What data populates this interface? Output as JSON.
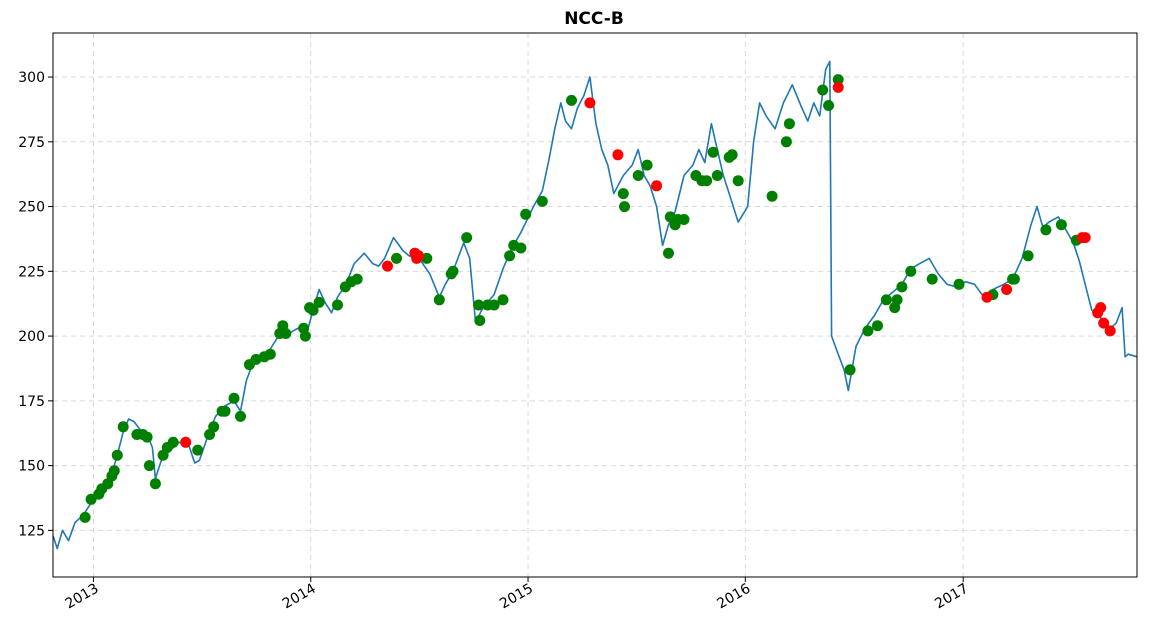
{
  "chart_data": {
    "type": "line",
    "title": "NCC-B",
    "xlabel": "",
    "ylabel": "",
    "xlim": [
      "2012-10-25",
      "2017-10-20"
    ],
    "ylim": [
      107,
      317
    ],
    "grid": true,
    "colors": {
      "line": "#1f77b4",
      "buy": "#008000",
      "sell": "#ff0000",
      "grid": "#d9d9d9"
    },
    "x_ticks": [
      {
        "date": "2013-01-01",
        "label": "2013"
      },
      {
        "date": "2014-01-01",
        "label": "2014"
      },
      {
        "date": "2015-01-01",
        "label": "2015"
      },
      {
        "date": "2016-01-01",
        "label": "2016"
      },
      {
        "date": "2017-01-01",
        "label": "2017"
      }
    ],
    "y_ticks": [
      {
        "value": 125,
        "label": "125"
      },
      {
        "value": 150,
        "label": "150"
      },
      {
        "value": 175,
        "label": "175"
      },
      {
        "value": 200,
        "label": "200"
      },
      {
        "value": 225,
        "label": "225"
      },
      {
        "value": 250,
        "label": "250"
      },
      {
        "value": 275,
        "label": "275"
      },
      {
        "value": 300,
        "label": "300"
      }
    ],
    "series": [
      {
        "points": [
          [
            "2012-10-25",
            123
          ],
          [
            "2012-11-01",
            118
          ],
          [
            "2012-11-10",
            125
          ],
          [
            "2012-11-20",
            121
          ],
          [
            "2012-12-01",
            128
          ],
          [
            "2012-12-15",
            131
          ],
          [
            "2013-01-01",
            137
          ],
          [
            "2013-01-15",
            141
          ],
          [
            "2013-02-01",
            147
          ],
          [
            "2013-02-10",
            154
          ],
          [
            "2013-02-20",
            163
          ],
          [
            "2013-03-01",
            168
          ],
          [
            "2013-03-10",
            167
          ],
          [
            "2013-03-20",
            164
          ],
          [
            "2013-04-01",
            162
          ],
          [
            "2013-04-10",
            157
          ],
          [
            "2013-04-15",
            145
          ],
          [
            "2013-04-25",
            152
          ],
          [
            "2013-05-10",
            156
          ],
          [
            "2013-05-25",
            159
          ],
          [
            "2013-06-10",
            158
          ],
          [
            "2013-06-20",
            151
          ],
          [
            "2013-06-28",
            152
          ],
          [
            "2013-07-10",
            160
          ],
          [
            "2013-07-25",
            169
          ],
          [
            "2013-08-10",
            173
          ],
          [
            "2013-08-25",
            175
          ],
          [
            "2013-09-05",
            171
          ],
          [
            "2013-09-15",
            183
          ],
          [
            "2013-09-25",
            189
          ],
          [
            "2013-10-10",
            192
          ],
          [
            "2013-10-25",
            195
          ],
          [
            "2013-11-05",
            199
          ],
          [
            "2013-11-15",
            204
          ],
          [
            "2013-11-25",
            201
          ],
          [
            "2013-12-10",
            203
          ],
          [
            "2013-12-25",
            201
          ],
          [
            "2014-01-05",
            210
          ],
          [
            "2014-01-15",
            218
          ],
          [
            "2014-01-25",
            213
          ],
          [
            "2014-02-05",
            209
          ],
          [
            "2014-02-15",
            215
          ],
          [
            "2014-03-01",
            220
          ],
          [
            "2014-03-15",
            228
          ],
          [
            "2014-04-01",
            232
          ],
          [
            "2014-04-15",
            228
          ],
          [
            "2014-04-25",
            227
          ],
          [
            "2014-05-05",
            230
          ],
          [
            "2014-05-20",
            238
          ],
          [
            "2014-06-05",
            233
          ],
          [
            "2014-06-15",
            231
          ],
          [
            "2014-06-28",
            230
          ],
          [
            "2014-07-05",
            229
          ],
          [
            "2014-07-20",
            224
          ],
          [
            "2014-08-05",
            215
          ],
          [
            "2014-08-15",
            220
          ],
          [
            "2014-08-28",
            225
          ],
          [
            "2014-09-15",
            236
          ],
          [
            "2014-09-25",
            230
          ],
          [
            "2014-10-05",
            205
          ],
          [
            "2014-10-15",
            210
          ],
          [
            "2014-10-25",
            213
          ],
          [
            "2014-11-05",
            216
          ],
          [
            "2014-11-20",
            226
          ],
          [
            "2014-12-05",
            234
          ],
          [
            "2014-12-20",
            240
          ],
          [
            "2015-01-10",
            250
          ],
          [
            "2015-01-25",
            256
          ],
          [
            "2015-02-05",
            268
          ],
          [
            "2015-02-15",
            280
          ],
          [
            "2015-02-25",
            290
          ],
          [
            "2015-03-05",
            283
          ],
          [
            "2015-03-15",
            280
          ],
          [
            "2015-03-25",
            288
          ],
          [
            "2015-04-05",
            293
          ],
          [
            "2015-04-15",
            300
          ],
          [
            "2015-04-25",
            282
          ],
          [
            "2015-05-05",
            272
          ],
          [
            "2015-05-15",
            266
          ],
          [
            "2015-05-25",
            255
          ],
          [
            "2015-06-10",
            262
          ],
          [
            "2015-06-25",
            266
          ],
          [
            "2015-07-05",
            272
          ],
          [
            "2015-07-15",
            262
          ],
          [
            "2015-07-25",
            258
          ],
          [
            "2015-08-05",
            250
          ],
          [
            "2015-08-15",
            235
          ],
          [
            "2015-08-25",
            243
          ],
          [
            "2015-09-05",
            248
          ],
          [
            "2015-09-20",
            262
          ],
          [
            "2015-10-05",
            266
          ],
          [
            "2015-10-15",
            272
          ],
          [
            "2015-10-25",
            267
          ],
          [
            "2015-11-05",
            282
          ],
          [
            "2015-11-15",
            272
          ],
          [
            "2015-11-25",
            262
          ],
          [
            "2015-12-05",
            255
          ],
          [
            "2015-12-20",
            244
          ],
          [
            "2016-01-05",
            250
          ],
          [
            "2016-01-15",
            275
          ],
          [
            "2016-01-25",
            290
          ],
          [
            "2016-02-05",
            285
          ],
          [
            "2016-02-20",
            280
          ],
          [
            "2016-03-05",
            290
          ],
          [
            "2016-03-20",
            297
          ],
          [
            "2016-04-05",
            288
          ],
          [
            "2016-04-15",
            283
          ],
          [
            "2016-04-25",
            290
          ],
          [
            "2016-05-05",
            285
          ],
          [
            "2016-05-15",
            303
          ],
          [
            "2016-05-22",
            306
          ],
          [
            "2016-05-25",
            200
          ],
          [
            "2016-06-05",
            193
          ],
          [
            "2016-06-15",
            187
          ],
          [
            "2016-06-22",
            179
          ],
          [
            "2016-07-05",
            196
          ],
          [
            "2016-07-20",
            203
          ],
          [
            "2016-08-05",
            208
          ],
          [
            "2016-08-20",
            214
          ],
          [
            "2016-09-05",
            217
          ],
          [
            "2016-09-20",
            220
          ],
          [
            "2016-10-05",
            226
          ],
          [
            "2016-10-20",
            228
          ],
          [
            "2016-11-05",
            230
          ],
          [
            "2016-11-20",
            224
          ],
          [
            "2016-12-05",
            220
          ],
          [
            "2016-12-20",
            219
          ],
          [
            "2017-01-05",
            221
          ],
          [
            "2017-01-20",
            220
          ],
          [
            "2017-02-05",
            215
          ],
          [
            "2017-02-20",
            218
          ],
          [
            "2017-03-10",
            220
          ],
          [
            "2017-03-25",
            222
          ],
          [
            "2017-04-10",
            230
          ],
          [
            "2017-04-25",
            243
          ],
          [
            "2017-05-05",
            250
          ],
          [
            "2017-05-15",
            242
          ],
          [
            "2017-05-25",
            244
          ],
          [
            "2017-06-10",
            246
          ],
          [
            "2017-06-25",
            240
          ],
          [
            "2017-07-05",
            236
          ],
          [
            "2017-07-15",
            229
          ],
          [
            "2017-07-25",
            220
          ],
          [
            "2017-08-05",
            210
          ],
          [
            "2017-08-15",
            208
          ],
          [
            "2017-08-25",
            206
          ],
          [
            "2017-09-05",
            203
          ],
          [
            "2017-09-15",
            205
          ],
          [
            "2017-09-25",
            211
          ],
          [
            "2017-09-30",
            192
          ],
          [
            "2017-10-05",
            193
          ],
          [
            "2017-10-20",
            192
          ]
        ]
      }
    ],
    "buy_points": [
      [
        "2012-12-18",
        130
      ],
      [
        "2012-12-28",
        137
      ],
      [
        "2013-01-10",
        139
      ],
      [
        "2013-01-15",
        141
      ],
      [
        "2013-01-25",
        143
      ],
      [
        "2013-02-01",
        146
      ],
      [
        "2013-02-05",
        148
      ],
      [
        "2013-02-10",
        154
      ],
      [
        "2013-02-20",
        165
      ],
      [
        "2013-03-15",
        162
      ],
      [
        "2013-03-25",
        162
      ],
      [
        "2013-04-01",
        161
      ],
      [
        "2013-04-05",
        150
      ],
      [
        "2013-04-15",
        143
      ],
      [
        "2013-04-28",
        154
      ],
      [
        "2013-05-05",
        157
      ],
      [
        "2013-05-15",
        159
      ],
      [
        "2013-06-25",
        156
      ],
      [
        "2013-07-15",
        162
      ],
      [
        "2013-07-22",
        165
      ],
      [
        "2013-08-05",
        171
      ],
      [
        "2013-08-10",
        171
      ],
      [
        "2013-08-25",
        176
      ],
      [
        "2013-09-05",
        169
      ],
      [
        "2013-09-20",
        189
      ],
      [
        "2013-10-01",
        191
      ],
      [
        "2013-10-15",
        192
      ],
      [
        "2013-10-25",
        193
      ],
      [
        "2013-11-10",
        201
      ],
      [
        "2013-11-15",
        204
      ],
      [
        "2013-11-20",
        201
      ],
      [
        "2013-12-20",
        203
      ],
      [
        "2013-12-23",
        200
      ],
      [
        "2013-12-30",
        211
      ],
      [
        "2014-01-05",
        210
      ],
      [
        "2014-01-15",
        213
      ],
      [
        "2014-02-15",
        212
      ],
      [
        "2014-02-28",
        219
      ],
      [
        "2014-03-10",
        221
      ],
      [
        "2014-03-20",
        222
      ],
      [
        "2014-05-25",
        230
      ],
      [
        "2014-07-15",
        230
      ],
      [
        "2014-08-05",
        214
      ],
      [
        "2014-08-25",
        224
      ],
      [
        "2014-08-28",
        225
      ],
      [
        "2014-09-20",
        238
      ],
      [
        "2014-10-10",
        212
      ],
      [
        "2014-10-12",
        206
      ],
      [
        "2014-10-25",
        212
      ],
      [
        "2014-11-05",
        212
      ],
      [
        "2014-11-20",
        214
      ],
      [
        "2014-12-01",
        231
      ],
      [
        "2014-12-08",
        235
      ],
      [
        "2014-12-20",
        234
      ],
      [
        "2014-12-28",
        247
      ],
      [
        "2015-01-25",
        252
      ],
      [
        "2015-03-15",
        291
      ],
      [
        "2015-06-10",
        255
      ],
      [
        "2015-06-12",
        250
      ],
      [
        "2015-07-05",
        262
      ],
      [
        "2015-07-20",
        266
      ],
      [
        "2015-08-25",
        232
      ],
      [
        "2015-08-28",
        246
      ],
      [
        "2015-09-05",
        243
      ],
      [
        "2015-09-10",
        245
      ],
      [
        "2015-09-20",
        245
      ],
      [
        "2015-10-10",
        262
      ],
      [
        "2015-10-20",
        260
      ],
      [
        "2015-10-28",
        260
      ],
      [
        "2015-11-08",
        271
      ],
      [
        "2015-11-15",
        262
      ],
      [
        "2015-12-05",
        269
      ],
      [
        "2015-12-10",
        270
      ],
      [
        "2015-12-20",
        260
      ],
      [
        "2016-02-15",
        254
      ],
      [
        "2016-03-10",
        275
      ],
      [
        "2016-03-15",
        282
      ],
      [
        "2016-05-10",
        295
      ],
      [
        "2016-05-20",
        289
      ],
      [
        "2016-06-05",
        299
      ],
      [
        "2016-06-25",
        187
      ],
      [
        "2016-07-25",
        202
      ],
      [
        "2016-08-10",
        204
      ],
      [
        "2016-08-25",
        214
      ],
      [
        "2016-09-08",
        211
      ],
      [
        "2016-09-12",
        214
      ],
      [
        "2016-09-20",
        219
      ],
      [
        "2016-10-05",
        225
      ],
      [
        "2016-11-10",
        222
      ],
      [
        "2016-12-25",
        220
      ],
      [
        "2017-02-20",
        216
      ],
      [
        "2017-03-25",
        222
      ],
      [
        "2017-03-28",
        222
      ],
      [
        "2017-04-20",
        231
      ],
      [
        "2017-05-20",
        241
      ],
      [
        "2017-06-15",
        243
      ],
      [
        "2017-07-10",
        237
      ]
    ],
    "sell_points": [
      [
        "2013-06-05",
        159
      ],
      [
        "2014-05-10",
        227
      ],
      [
        "2014-06-25",
        232
      ],
      [
        "2014-06-28",
        230
      ],
      [
        "2014-07-01",
        231
      ],
      [
        "2015-04-15",
        290
      ],
      [
        "2015-06-01",
        270
      ],
      [
        "2015-08-05",
        258
      ],
      [
        "2016-06-05",
        296
      ],
      [
        "2017-02-10",
        215
      ],
      [
        "2017-03-15",
        218
      ],
      [
        "2017-07-20",
        238
      ],
      [
        "2017-07-25",
        238
      ],
      [
        "2017-08-15",
        209
      ],
      [
        "2017-08-20",
        211
      ],
      [
        "2017-08-25",
        205
      ],
      [
        "2017-09-05",
        202
      ]
    ]
  }
}
